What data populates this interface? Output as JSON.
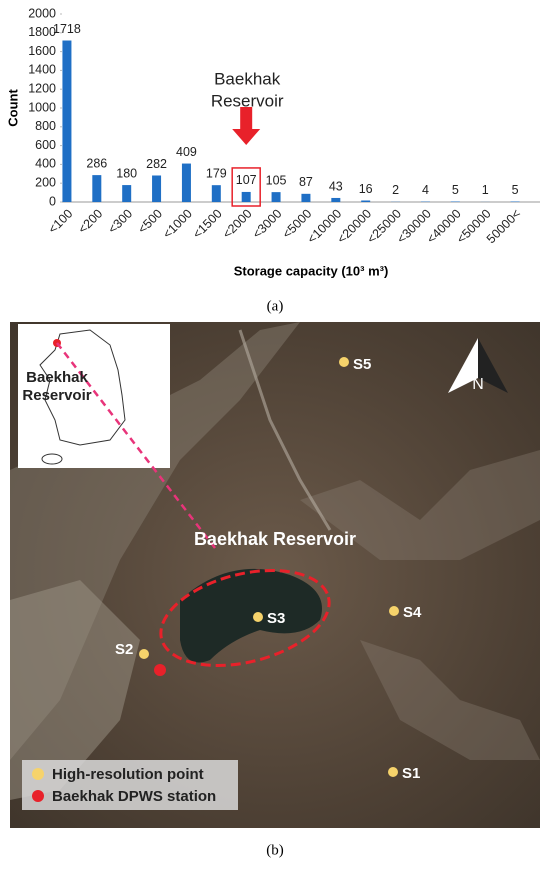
{
  "chart_data": {
    "type": "bar",
    "ylabel": "Count",
    "xlabel": "Storage capacity (10³ m³)",
    "categories": [
      "<100",
      "<200",
      "<300",
      "<500",
      "<1000",
      "<1500",
      "<2000",
      "<3000",
      "<5000",
      "<10000",
      "<20000",
      "<25000",
      "<30000",
      "<40000",
      "<50000",
      "50000<"
    ],
    "values": [
      1718,
      286,
      180,
      282,
      409,
      179,
      107,
      105,
      87,
      43,
      16,
      2,
      4,
      5,
      1,
      5
    ],
    "color": "#1f6fc5",
    "ylim": [
      0,
      2000
    ],
    "yticks": [
      0,
      200,
      400,
      600,
      800,
      1000,
      1200,
      1400,
      1600,
      1800,
      2000
    ],
    "annotation": [
      "Baekhak",
      "Reservoir"
    ]
  },
  "captions": [
    "(a)",
    "(b)"
  ],
  "map": {
    "inset_label": [
      "Baekhak",
      "Reservoir"
    ],
    "title": "Baekhak Reservoir",
    "north": "N",
    "points": [
      "S1",
      "S2",
      "S3",
      "S4",
      "S5"
    ],
    "legend": [
      "High-resolution point",
      "Baekhak DPWS station"
    ]
  }
}
